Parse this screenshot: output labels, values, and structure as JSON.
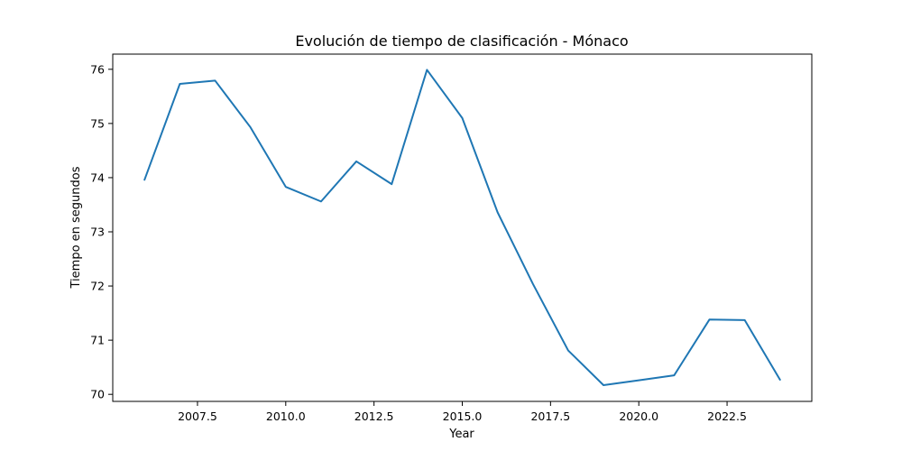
{
  "chart_data": {
    "type": "line",
    "title": "Evolución de tiempo de clasificación - Mónaco",
    "xlabel": "Year",
    "ylabel": "Tiempo en segundos",
    "xlim": [
      2005.1,
      2024.9
    ],
    "ylim": [
      69.87,
      76.28
    ],
    "x_ticks": [
      2007.5,
      2010.0,
      2012.5,
      2015.0,
      2017.5,
      2020.0,
      2022.5
    ],
    "x_tick_labels": [
      "2007.5",
      "2010.0",
      "2012.5",
      "2015.0",
      "2017.5",
      "2020.0",
      "2022.5"
    ],
    "y_ticks": [
      70,
      71,
      72,
      73,
      74,
      75,
      76
    ],
    "y_tick_labels": [
      "70",
      "71",
      "72",
      "73",
      "74",
      "75",
      "76"
    ],
    "grid": false,
    "series": [
      {
        "color": "#1f77b4",
        "x": [
          2006,
          2007,
          2008,
          2009,
          2010,
          2011,
          2012,
          2013,
          2014,
          2015,
          2016,
          2017,
          2018,
          2019,
          2020,
          2021,
          2022,
          2023,
          2024
        ],
        "y": [
          73.96,
          75.73,
          75.79,
          74.93,
          73.83,
          73.56,
          74.3,
          73.88,
          75.99,
          75.1,
          73.36,
          72.04,
          70.81,
          70.17,
          70.26,
          70.35,
          71.38,
          71.37,
          70.27
        ]
      }
    ]
  }
}
